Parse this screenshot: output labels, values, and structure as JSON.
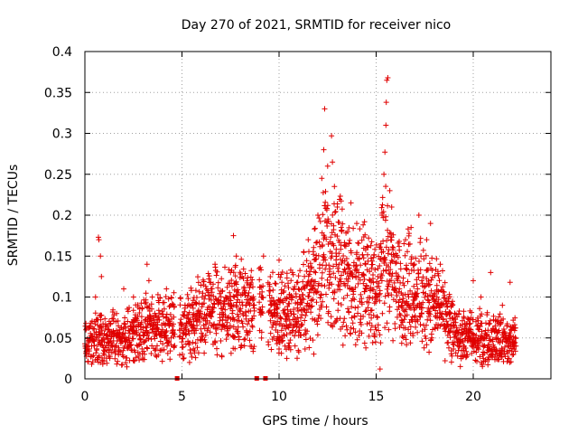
{
  "chart_data": {
    "type": "scatter",
    "title": "Day 270 of 2021, SRMTID for receiver nico",
    "xlabel": "GPS time / hours",
    "ylabel": "SRMTID / TECUs",
    "xlim": [
      0,
      24
    ],
    "ylim": [
      0,
      0.4
    ],
    "xticks": [
      0,
      5,
      10,
      15,
      20
    ],
    "xtick_labels": [
      "0",
      "5",
      "10",
      "15",
      "20"
    ],
    "yticks": [
      0,
      0.05,
      0.1,
      0.15,
      0.2,
      0.25,
      0.3,
      0.35,
      0.4
    ],
    "ytick_labels": [
      "0",
      "0.05",
      "0.1",
      "0.15",
      "0.2",
      "0.25",
      "0.3",
      "0.35",
      "0.4"
    ],
    "grid": true,
    "marker": "+",
    "color": "#e00000",
    "x_range_of_data": [
      0,
      22.2
    ],
    "data_gaps_at_zero": [
      4.75,
      8.85,
      9.3
    ],
    "trend": [
      [
        0.0,
        0.045
      ],
      [
        1.0,
        0.05
      ],
      [
        2.0,
        0.048
      ],
      [
        3.0,
        0.06
      ],
      [
        4.0,
        0.065
      ],
      [
        5.0,
        0.062
      ],
      [
        6.0,
        0.075
      ],
      [
        7.0,
        0.085
      ],
      [
        8.0,
        0.09
      ],
      [
        9.0,
        0.085
      ],
      [
        10.0,
        0.08
      ],
      [
        11.0,
        0.085
      ],
      [
        12.0,
        0.12
      ],
      [
        12.5,
        0.15
      ],
      [
        13.0,
        0.14
      ],
      [
        14.0,
        0.12
      ],
      [
        15.0,
        0.105
      ],
      [
        15.5,
        0.15
      ],
      [
        16.0,
        0.12
      ],
      [
        17.0,
        0.105
      ],
      [
        18.0,
        0.095
      ],
      [
        19.0,
        0.055
      ],
      [
        20.0,
        0.05
      ],
      [
        21.0,
        0.05
      ],
      [
        22.0,
        0.045
      ]
    ],
    "points": [
      [
        0.05,
        0.06
      ],
      [
        0.2,
        0.03
      ],
      [
        0.35,
        0.018
      ],
      [
        0.5,
        0.07
      ],
      [
        0.55,
        0.1
      ],
      [
        0.7,
        0.173
      ],
      [
        0.72,
        0.17
      ],
      [
        0.8,
        0.15
      ],
      [
        0.85,
        0.125
      ],
      [
        1.0,
        0.045
      ],
      [
        1.3,
        0.035
      ],
      [
        1.8,
        0.06
      ],
      [
        2.0,
        0.11
      ],
      [
        2.5,
        0.1
      ],
      [
        3.2,
        0.14
      ],
      [
        3.3,
        0.12
      ],
      [
        3.6,
        0.08
      ],
      [
        4.2,
        0.11
      ],
      [
        5.5,
        0.09
      ],
      [
        6.5,
        0.11
      ],
      [
        6.7,
        0.14
      ],
      [
        7.5,
        0.13
      ],
      [
        7.65,
        0.175
      ],
      [
        7.8,
        0.15
      ],
      [
        8.5,
        0.115
      ],
      [
        9.2,
        0.15
      ],
      [
        10.0,
        0.145
      ],
      [
        10.3,
        0.04
      ],
      [
        10.4,
        0.025
      ],
      [
        11.0,
        0.11
      ],
      [
        11.5,
        0.17
      ],
      [
        12.0,
        0.2
      ],
      [
        12.2,
        0.245
      ],
      [
        12.3,
        0.28
      ],
      [
        12.35,
        0.33
      ],
      [
        12.5,
        0.26
      ],
      [
        12.7,
        0.297
      ],
      [
        12.75,
        0.265
      ],
      [
        12.85,
        0.235
      ],
      [
        13.0,
        0.21
      ],
      [
        13.2,
        0.185
      ],
      [
        13.5,
        0.06
      ],
      [
        13.7,
        0.215
      ],
      [
        14.0,
        0.19
      ],
      [
        14.5,
        0.11
      ],
      [
        15.0,
        0.06
      ],
      [
        15.2,
        0.012
      ],
      [
        15.3,
        0.2
      ],
      [
        15.4,
        0.25
      ],
      [
        15.45,
        0.277
      ],
      [
        15.5,
        0.31
      ],
      [
        15.52,
        0.338
      ],
      [
        15.55,
        0.365
      ],
      [
        15.6,
        0.368
      ],
      [
        15.7,
        0.23
      ],
      [
        15.8,
        0.21
      ],
      [
        16.2,
        0.11
      ],
      [
        16.8,
        0.185
      ],
      [
        17.2,
        0.2
      ],
      [
        17.6,
        0.17
      ],
      [
        17.8,
        0.19
      ],
      [
        18.3,
        0.14
      ],
      [
        18.8,
        0.08
      ],
      [
        19.5,
        0.04
      ],
      [
        20.0,
        0.12
      ],
      [
        20.4,
        0.1
      ],
      [
        20.9,
        0.13
      ],
      [
        21.5,
        0.09
      ],
      [
        21.9,
        0.118
      ],
      [
        22.2,
        0.04
      ]
    ]
  }
}
